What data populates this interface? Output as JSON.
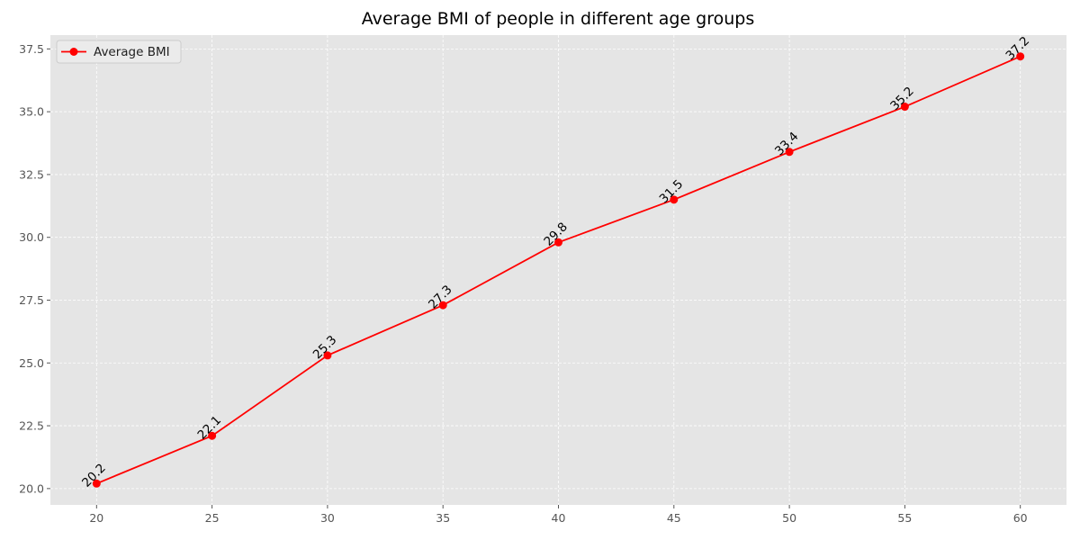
{
  "chart_data": {
    "type": "line",
    "title": "Average BMI of people in different age groups",
    "xlabel": "",
    "ylabel": "",
    "x": [
      20,
      25,
      30,
      35,
      40,
      45,
      50,
      55,
      60
    ],
    "series": [
      {
        "name": "Average BMI",
        "values": [
          20.2,
          22.1,
          25.3,
          27.3,
          29.8,
          31.5,
          33.4,
          35.2,
          37.2
        ],
        "labels": [
          "20.2",
          "22.1",
          "25.3",
          "27.3",
          "29.8",
          "31.5",
          "33.4",
          "35.2",
          "37.2"
        ],
        "color": "#ff0000"
      }
    ],
    "xticks": [
      20,
      25,
      30,
      35,
      40,
      45,
      50,
      55,
      60
    ],
    "xtick_labels": [
      "20",
      "25",
      "30",
      "35",
      "40",
      "45",
      "50",
      "55",
      "60"
    ],
    "yticks": [
      20.0,
      22.5,
      25.0,
      27.5,
      30.0,
      32.5,
      35.0,
      37.5
    ],
    "ytick_labels": [
      "20.0",
      "22.5",
      "25.0",
      "27.5",
      "30.0",
      "32.5",
      "35.0",
      "37.5"
    ],
    "xlim": [
      18,
      62
    ],
    "ylim": [
      19.35,
      38.05
    ],
    "grid": true,
    "legend_position": "top-left",
    "plot_background": "#e5e5e5",
    "grid_color": "#ffffff"
  }
}
